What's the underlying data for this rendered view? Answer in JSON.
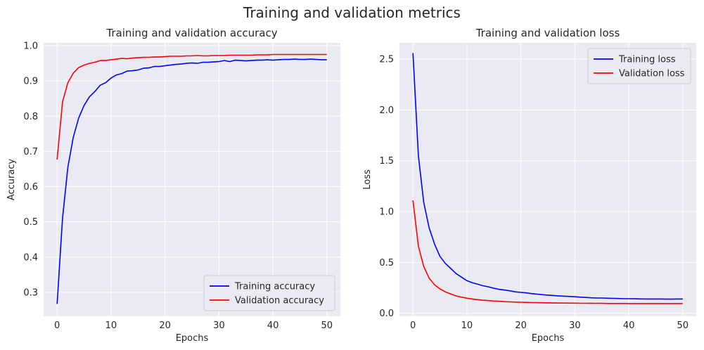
{
  "figure": {
    "title": "Training and validation metrics"
  },
  "colors": {
    "background": "#eaeaf2",
    "grid": "#ffffff",
    "training": "#0000ff",
    "validation": "#ff0000",
    "text": "#262626"
  },
  "chart_data": [
    {
      "type": "line",
      "title": "Training and validation accuracy",
      "xlabel": "Epochs",
      "ylabel": "Accuracy",
      "xlim": [
        -2.5,
        52.5
      ],
      "ylim": [
        0.232,
        1.008
      ],
      "xticks": [
        0,
        10,
        20,
        30,
        40,
        50
      ],
      "xtick_labels": [
        "0",
        "10",
        "20",
        "30",
        "40",
        "50"
      ],
      "yticks": [
        0.3,
        0.4,
        0.5,
        0.6,
        0.7,
        0.8,
        0.9,
        1.0
      ],
      "ytick_labels": [
        "0.3",
        "0.4",
        "0.5",
        "0.6",
        "0.7",
        "0.8",
        "0.9",
        "1.0"
      ],
      "grid": true,
      "legend_position": "lower-right",
      "x": [
        0,
        1,
        2,
        3,
        4,
        5,
        6,
        7,
        8,
        9,
        10,
        11,
        12,
        13,
        14,
        15,
        16,
        17,
        18,
        19,
        20,
        21,
        22,
        23,
        24,
        25,
        26,
        27,
        28,
        29,
        30,
        31,
        32,
        33,
        34,
        35,
        36,
        37,
        38,
        39,
        40,
        41,
        42,
        43,
        44,
        45,
        46,
        47,
        48,
        49,
        50
      ],
      "series": [
        {
          "name": "Training accuracy",
          "color": "#0000ff",
          "values": [
            0.267,
            0.51,
            0.655,
            0.74,
            0.795,
            0.83,
            0.855,
            0.87,
            0.888,
            0.895,
            0.908,
            0.917,
            0.921,
            0.928,
            0.929,
            0.931,
            0.936,
            0.937,
            0.941,
            0.941,
            0.943,
            0.945,
            0.947,
            0.948,
            0.95,
            0.951,
            0.95,
            0.953,
            0.953,
            0.954,
            0.955,
            0.958,
            0.955,
            0.959,
            0.958,
            0.957,
            0.958,
            0.959,
            0.959,
            0.96,
            0.959,
            0.96,
            0.961,
            0.961,
            0.962,
            0.961,
            0.961,
            0.962,
            0.961,
            0.96,
            0.96
          ]
        },
        {
          "name": "Validation accuracy",
          "color": "#ff0000",
          "values": [
            0.677,
            0.84,
            0.895,
            0.922,
            0.938,
            0.945,
            0.95,
            0.953,
            0.958,
            0.958,
            0.96,
            0.962,
            0.964,
            0.963,
            0.965,
            0.966,
            0.967,
            0.967,
            0.968,
            0.968,
            0.969,
            0.97,
            0.97,
            0.97,
            0.971,
            0.971,
            0.972,
            0.971,
            0.971,
            0.972,
            0.972,
            0.972,
            0.973,
            0.973,
            0.973,
            0.973,
            0.973,
            0.974,
            0.974,
            0.974,
            0.975,
            0.975,
            0.975,
            0.975,
            0.975,
            0.975,
            0.975,
            0.975,
            0.975,
            0.975,
            0.975
          ]
        }
      ]
    },
    {
      "type": "line",
      "title": "Training and validation loss",
      "xlabel": "Epochs",
      "ylabel": "Loss",
      "xlim": [
        -2.5,
        52.5
      ],
      "ylim": [
        -0.03,
        2.66
      ],
      "xticks": [
        0,
        10,
        20,
        30,
        40,
        50
      ],
      "xtick_labels": [
        "0",
        "10",
        "20",
        "30",
        "40",
        "50"
      ],
      "yticks": [
        0.0,
        0.5,
        1.0,
        1.5,
        2.0,
        2.5
      ],
      "ytick_labels": [
        "0.0",
        "0.5",
        "1.0",
        "1.5",
        "2.0",
        "2.5"
      ],
      "grid": true,
      "legend_position": "upper-right",
      "x": [
        0,
        1,
        2,
        3,
        4,
        5,
        6,
        7,
        8,
        9,
        10,
        11,
        12,
        13,
        14,
        15,
        16,
        17,
        18,
        19,
        20,
        21,
        22,
        23,
        24,
        25,
        26,
        27,
        28,
        29,
        30,
        31,
        32,
        33,
        34,
        35,
        36,
        37,
        38,
        39,
        40,
        41,
        42,
        43,
        44,
        45,
        46,
        47,
        48,
        49,
        50
      ],
      "series": [
        {
          "name": "Training loss",
          "color": "#0000ff",
          "values": [
            2.56,
            1.55,
            1.09,
            0.84,
            0.68,
            0.56,
            0.49,
            0.44,
            0.39,
            0.355,
            0.32,
            0.3,
            0.285,
            0.27,
            0.26,
            0.245,
            0.235,
            0.228,
            0.22,
            0.21,
            0.205,
            0.2,
            0.193,
            0.188,
            0.182,
            0.178,
            0.175,
            0.17,
            0.168,
            0.165,
            0.162,
            0.158,
            0.155,
            0.152,
            0.15,
            0.15,
            0.148,
            0.146,
            0.145,
            0.143,
            0.143,
            0.142,
            0.141,
            0.14,
            0.14,
            0.14,
            0.14,
            0.139,
            0.139,
            0.14,
            0.14
          ]
        },
        {
          "name": "Validation loss",
          "color": "#ff0000",
          "values": [
            1.11,
            0.66,
            0.46,
            0.345,
            0.28,
            0.24,
            0.21,
            0.19,
            0.17,
            0.158,
            0.148,
            0.14,
            0.133,
            0.128,
            0.124,
            0.12,
            0.117,
            0.114,
            0.112,
            0.11,
            0.108,
            0.106,
            0.105,
            0.104,
            0.103,
            0.102,
            0.101,
            0.1,
            0.1,
            0.099,
            0.099,
            0.098,
            0.098,
            0.097,
            0.097,
            0.097,
            0.096,
            0.096,
            0.096,
            0.096,
            0.095,
            0.095,
            0.095,
            0.095,
            0.095,
            0.095,
            0.095,
            0.095,
            0.095,
            0.095,
            0.095
          ]
        }
      ]
    }
  ]
}
